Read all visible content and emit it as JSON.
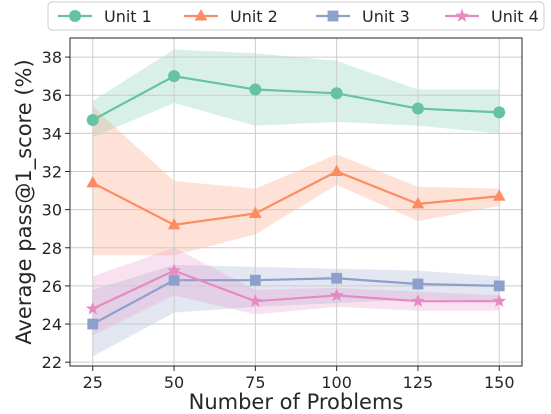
{
  "chart_data": {
    "type": "line",
    "title": "",
    "xlabel": "Number of Problems",
    "ylabel": "Average pass@1_score (%)",
    "x": [
      25,
      50,
      75,
      100,
      125,
      150
    ],
    "xticks": [
      "25",
      "50",
      "75",
      "100",
      "125",
      "150"
    ],
    "yticks": [
      "22",
      "24",
      "26",
      "28",
      "30",
      "32",
      "34",
      "36",
      "38"
    ],
    "xlim": [
      18,
      157
    ],
    "ylim": [
      21.8,
      39
    ],
    "grid": true,
    "legend": {
      "placement": "top",
      "columns": 4
    },
    "series": [
      {
        "name": "Unit 1",
        "color": "#66c2a5",
        "marker": "circle",
        "values": [
          34.7,
          37.0,
          36.3,
          36.1,
          35.3,
          35.1
        ],
        "band_upper": [
          35.7,
          38.4,
          38.2,
          37.8,
          36.3,
          36.3
        ],
        "band_lower": [
          33.8,
          35.6,
          34.4,
          34.6,
          34.4,
          34.0
        ]
      },
      {
        "name": "Unit 2",
        "color": "#fc8d62",
        "marker": "triangle",
        "values": [
          31.4,
          29.2,
          29.8,
          32.0,
          30.3,
          30.7
        ],
        "band_upper": [
          35.4,
          31.5,
          31.1,
          32.9,
          31.2,
          31.1
        ],
        "band_lower": [
          27.6,
          27.6,
          28.7,
          31.3,
          29.4,
          30.2
        ]
      },
      {
        "name": "Unit 3",
        "color": "#8da0cb",
        "marker": "square",
        "values": [
          24.0,
          26.3,
          26.3,
          26.4,
          26.1,
          26.0
        ],
        "band_upper": [
          25.8,
          27.1,
          27.0,
          26.9,
          26.8,
          26.5
        ],
        "band_lower": [
          22.3,
          24.6,
          24.9,
          25.1,
          25.3,
          25.2
        ]
      },
      {
        "name": "Unit 4",
        "color": "#e78ac3",
        "marker": "star",
        "values": [
          24.8,
          26.8,
          25.2,
          25.5,
          25.2,
          25.2
        ],
        "band_upper": [
          26.5,
          28.0,
          25.8,
          25.9,
          25.7,
          25.5
        ],
        "band_lower": [
          23.4,
          25.5,
          24.5,
          24.9,
          24.7,
          24.7
        ]
      }
    ]
  }
}
